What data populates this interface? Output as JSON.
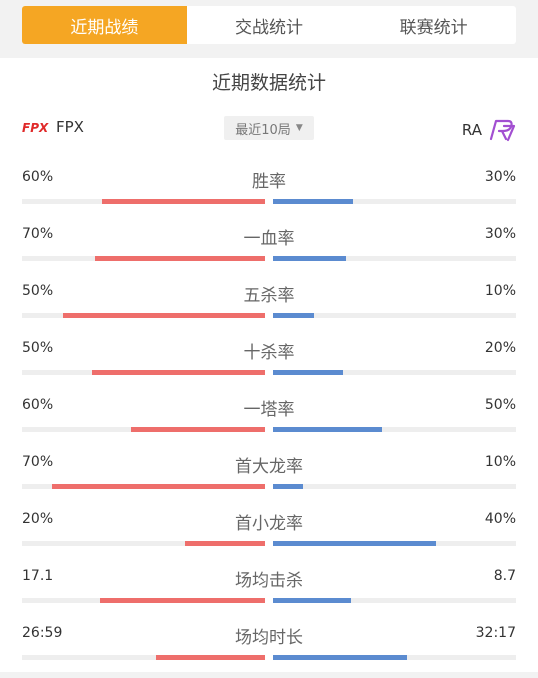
{
  "tabs": [
    {
      "label": "近期战绩",
      "active": true
    },
    {
      "label": "交战统计",
      "active": false
    },
    {
      "label": "联赛统计",
      "active": false
    }
  ],
  "section_title": "近期数据统计",
  "team_left": {
    "name": "FPX",
    "logo_icon": "fpx-logo"
  },
  "team_right": {
    "name": "RA",
    "logo_icon": "ra-logo"
  },
  "filter": {
    "label": "最近10局",
    "icon": "caret-down-icon"
  },
  "colors": {
    "left_bar": "#ee6e6b",
    "right_bar": "#5b8bd0",
    "tab_active": "#f5a623"
  },
  "stats": [
    {
      "label": "胜率",
      "left": "60%",
      "right": "30%",
      "left_fill": 0.67,
      "right_fill": 0.33
    },
    {
      "label": "一血率",
      "left": "70%",
      "right": "30%",
      "left_fill": 0.7,
      "right_fill": 0.3
    },
    {
      "label": "五杀率",
      "left": "50%",
      "right": "10%",
      "left_fill": 0.83,
      "right_fill": 0.17
    },
    {
      "label": "十杀率",
      "left": "50%",
      "right": "20%",
      "left_fill": 0.71,
      "right_fill": 0.29
    },
    {
      "label": "一塔率",
      "left": "60%",
      "right": "50%",
      "left_fill": 0.55,
      "right_fill": 0.45
    },
    {
      "label": "首大龙率",
      "left": "70%",
      "right": "10%",
      "left_fill": 0.875,
      "right_fill": 0.125
    },
    {
      "label": "首小龙率",
      "left": "20%",
      "right": "40%",
      "left_fill": 0.33,
      "right_fill": 0.67
    },
    {
      "label": "场均击杀",
      "left": "17.1",
      "right": "8.7",
      "left_fill": 0.68,
      "right_fill": 0.32
    },
    {
      "label": "场均时长",
      "left": "26:59",
      "right": "32:17",
      "left_fill": 0.45,
      "right_fill": 0.55
    }
  ]
}
